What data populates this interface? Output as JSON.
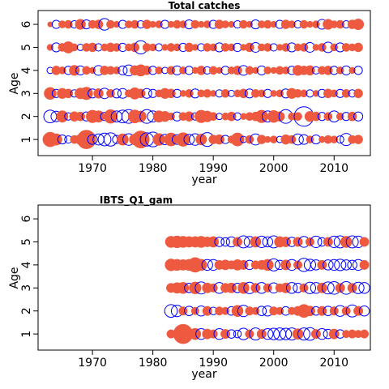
{
  "chart_data": [
    {
      "type": "scatter",
      "title": "Total catches",
      "xlabel": "year",
      "ylabel": "Age",
      "xlim": [
        1961,
        2016
      ],
      "ylim": [
        0.3,
        6.6
      ],
      "x_ticks": [
        1970,
        1980,
        1990,
        2000,
        2010
      ],
      "y_ticks": [
        1,
        2,
        3,
        4,
        5,
        6
      ],
      "years": [
        1963,
        2014
      ],
      "ages": [
        1,
        2,
        3,
        4,
        5,
        6
      ],
      "encoding": "bubble area proportional to residual magnitude; filled red = positive, open blue = negative",
      "positive_color": "#EE5A40",
      "negative_color": "#0000FF",
      "residuals": {
        "1": [
          1.6,
          1.0,
          -0.6,
          -0.4,
          0.5,
          0.8,
          2.6,
          -0.7,
          -0.9,
          -1.2,
          -1.3,
          -0.5,
          1.0,
          -1.0,
          0.9,
          2.2,
          -1.3,
          -1.6,
          1.1,
          -0.8,
          1.3,
          -0.7,
          1.4,
          -0.8,
          -1.0,
          0.9,
          -1.4,
          0.6,
          0.7,
          -0.5,
          0.4,
          1.3,
          -0.3,
          0.5,
          -0.9,
          0.6,
          0.3,
          0.4,
          -0.3,
          0.7,
          0.5,
          -0.9,
          -0.7,
          0.4,
          -0.6,
          0.3,
          0.5,
          0.4,
          -0.4,
          -1.1,
          0.5,
          0.6
        ],
        "2": [
          -1.2,
          -0.8,
          1.0,
          -0.4,
          0.7,
          0.6,
          -0.6,
          1.2,
          1.0,
          -0.5,
          1.4,
          -0.9,
          -1.2,
          -1.4,
          1.3,
          0.9,
          -1.4,
          -0.9,
          1.0,
          0.8,
          0.4,
          -0.6,
          0.5,
          0.7,
          -0.4,
          1.2,
          0.9,
          0.5,
          -0.3,
          0.4,
          0.6,
          -0.4,
          0.3,
          0.5,
          0.6,
          1.2,
          -0.9,
          1.1,
          0.7,
          -1.4,
          0.4,
          0.5,
          -2.8,
          0.8,
          0.6,
          -0.5,
          0.5,
          -0.9,
          0.4,
          -0.5,
          0.6,
          -0.6
        ],
        "3": [
          1.1,
          -0.5,
          0.8,
          0.6,
          -0.4,
          0.9,
          1.2,
          -0.6,
          0.7,
          -0.8,
          0.5,
          -0.6,
          -0.7,
          0.4,
          1.0,
          0.6,
          -0.7,
          -0.5,
          0.4,
          0.8,
          0.6,
          -0.5,
          0.3,
          0.5,
          -0.6,
          0.4,
          0.5,
          0.3,
          -0.4,
          0.5,
          -0.3,
          0.4,
          0.6,
          -0.6,
          0.5,
          0.4,
          -0.5,
          0.3,
          0.4,
          -0.6,
          0.8,
          0.5,
          0.4,
          -0.4,
          0.3,
          -0.5,
          0.6,
          0.4,
          -0.5,
          0.5,
          -0.4,
          0.6
        ],
        "4": [
          -0.3,
          0.6,
          0.4,
          -0.5,
          0.8,
          -0.6,
          0.5,
          0.3,
          -0.7,
          0.6,
          0.5,
          0.4,
          -0.6,
          -0.9,
          0.7,
          1.0,
          0.6,
          -0.5,
          0.4,
          -0.3,
          0.5,
          -0.6,
          0.4,
          -0.5,
          0.3,
          0.6,
          -0.4,
          0.5,
          0.3,
          -0.5,
          0.4,
          0.6,
          -0.7,
          0.5,
          0.3,
          -0.6,
          0.4,
          0.3,
          0.5,
          0.4,
          -0.5,
          0.8,
          0.6,
          0.7,
          -0.4,
          0.5,
          0.6,
          -0.5,
          0.4,
          -0.6,
          0.3,
          -0.5
        ],
        "5": [
          0.3,
          -0.6,
          0.5,
          1.0,
          0.4,
          -0.3,
          0.5,
          0.6,
          -0.4,
          0.4,
          0.6,
          0.5,
          -0.5,
          0.4,
          0.6,
          -1.3,
          0.5,
          0.4,
          -0.4,
          0.3,
          0.5,
          0.4,
          -0.5,
          0.6,
          0.3,
          -0.4,
          0.5,
          0.4,
          -0.6,
          0.5,
          0.4,
          -0.5,
          0.3,
          0.6,
          -0.7,
          0.4,
          0.5,
          -0.4,
          0.3,
          0.5,
          -0.6,
          0.4,
          0.5,
          -0.7,
          0.3,
          0.5,
          -0.8,
          0.4,
          -0.6,
          0.5,
          0.4,
          0.6
        ],
        "6": [
          0.2,
          -0.5,
          0.4,
          0.5,
          -0.4,
          0.8,
          -0.6,
          0.5,
          0.6,
          -1.0,
          0.5,
          0.3,
          -0.5,
          0.4,
          0.5,
          -0.4,
          0.6,
          0.3,
          0.4,
          -0.5,
          0.3,
          0.5,
          0.4,
          -0.6,
          0.5,
          0.3,
          0.4,
          -0.5,
          0.6,
          0.4,
          0.3,
          -0.4,
          0.5,
          0.3,
          -0.6,
          0.4,
          0.5,
          0.3,
          -0.5,
          0.6,
          0.4,
          -0.4,
          0.5,
          0.3,
          0.4,
          -0.7,
          0.8,
          0.4,
          0.5,
          -0.4,
          0.6,
          0.9
        ]
      }
    },
    {
      "type": "scatter",
      "title": "IBTS_Q1_gam",
      "xlabel": "year",
      "ylabel": "Age",
      "xlim": [
        1961,
        2016
      ],
      "ylim": [
        0.3,
        6.6
      ],
      "x_ticks": [
        1970,
        1980,
        1990,
        2000,
        2010
      ],
      "y_ticks": [
        1,
        2,
        3,
        4,
        5,
        6
      ],
      "years": [
        1983,
        2015
      ],
      "ages": [
        1,
        2,
        3,
        4,
        5
      ],
      "encoding": "bubble area proportional to residual magnitude; filled red = positive, open blue = negative",
      "positive_color": "#EE5A40",
      "negative_color": "#0000FF",
      "residuals": {
        "1": [
          0.5,
          -0.3,
          2.6,
          0.6,
          0.9,
          -0.8,
          0.7,
          0.5,
          -0.8,
          0.6,
          -0.5,
          -0.4,
          -0.9,
          0.5,
          -1.0,
          0.6,
          -0.8,
          -0.9,
          -1.0,
          -0.9,
          -1.0,
          0.8,
          -1.0,
          -1.1,
          0.6,
          -0.8,
          -0.6,
          0.7,
          -0.5,
          0.4,
          0.5,
          0.4,
          0.5
        ],
        "2": [
          -1.1,
          -0.9,
          0.5,
          -0.6,
          0.4,
          -0.7,
          0.6,
          -0.4,
          0.5,
          0.4,
          -0.5,
          0.9,
          -0.9,
          0.5,
          0.4,
          -0.6,
          -0.7,
          0.5,
          0.4,
          -0.5,
          0.4,
          0.6,
          1.2,
          0.7,
          -0.5,
          0.6,
          -0.6,
          0.5,
          -0.8,
          0.5,
          -1.0,
          0.6,
          -0.7
        ],
        "3": [
          0.6,
          0.8,
          0.9,
          -0.6,
          1.0,
          -1.0,
          0.7,
          0.5,
          -0.8,
          0.6,
          0.7,
          -0.6,
          0.9,
          -0.9,
          0.6,
          -0.8,
          0.5,
          -0.7,
          0.5,
          0.7,
          -0.8,
          -0.6,
          0.5,
          -0.9,
          -0.8,
          0.7,
          -1.0,
          -1.1,
          0.6,
          -1.1,
          0.6,
          -0.9,
          -0.8
        ],
        "4": [
          1.0,
          0.9,
          0.8,
          0.9,
          1.5,
          0.9,
          -0.8,
          -0.8,
          0.6,
          0.7,
          0.5,
          0.8,
          0.6,
          -0.6,
          0.5,
          0.6,
          0.9,
          -1.0,
          -0.6,
          0.7,
          -0.8,
          0.5,
          -1.2,
          -0.9,
          -0.7,
          0.6,
          -0.7,
          -0.8,
          -0.9,
          -0.7,
          -0.6,
          -0.8,
          0.6
        ],
        "5": [
          0.9,
          1.0,
          0.9,
          0.8,
          0.8,
          0.9,
          0.7,
          0.8,
          -0.6,
          -0.5,
          -0.7,
          0.6,
          -1.0,
          -0.8,
          0.8,
          -0.9,
          -0.7,
          -1.0,
          0.8,
          0.7,
          -0.6,
          0.6,
          -0.8,
          0.5,
          -0.9,
          -0.5,
          0.6,
          -0.9,
          -1.0,
          0.9,
          -1.0,
          -0.9,
          0.6
        ]
      }
    }
  ]
}
